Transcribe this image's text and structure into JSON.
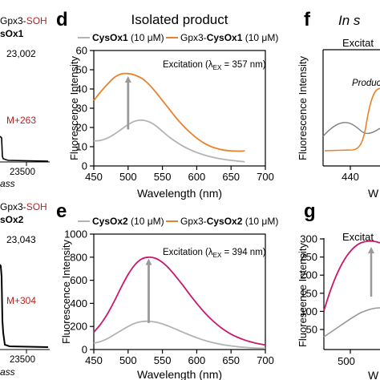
{
  "left_fragment": {
    "top": {
      "legend_line1": "Gpx3-",
      "legend_line1_red": "SOH",
      "legend_line2": "sOx1",
      "peak_label": "23,002",
      "mass_label": "M+263",
      "tick_label": "23500",
      "axis_label": "ass"
    },
    "bottom": {
      "legend_line1": "Gpx3-",
      "legend_line1_red": "SOH",
      "legend_line2": "sOx2",
      "peak_label": "23,043",
      "mass_label": "M+304",
      "tick_label": "23500",
      "axis_label": "ass"
    }
  },
  "panels": {
    "d_letter": "d",
    "e_letter": "e",
    "f_letter": "f",
    "g_letter": "g",
    "d_title": "Isolated product",
    "f_title": "In s",
    "f_subtitle": "Excitat",
    "f_annotation": "Produc",
    "g_subtitle": "Excitat",
    "f_xtick": "440",
    "f_xlabel": "W",
    "g_xtick": "500",
    "g_xlabel": "W",
    "g_yticks": [
      "300",
      "250",
      "200",
      "150",
      "100",
      "50"
    ],
    "f_ylabel": "Fluorescence Intensity",
    "g_ylabel": "Fluorescence Intensity"
  },
  "colors": {
    "gray": "#b3b3b3",
    "orange": "#e8822a",
    "magenta": "#c8196b",
    "red_text": "#b32424",
    "arrow": "#9a9a9a"
  },
  "chart_data": [
    {
      "id": "d",
      "type": "line",
      "xlabel": "Wavelength (nm)",
      "ylabel": "Fluorescence Intensity",
      "xlim": [
        450,
        700
      ],
      "ylim": [
        0,
        60
      ],
      "xticks": [
        450,
        500,
        550,
        600,
        650,
        700
      ],
      "yticks": [
        0,
        10,
        20,
        30,
        40,
        50,
        60
      ],
      "annotation": "Excitation (λ",
      "annotation_sub": "EX",
      "annotation_end": " = 357 nm)",
      "legend": [
        {
          "bold": "CysOx1",
          "rest": " (10 μM)",
          "color": "gray"
        },
        {
          "prefix": "Gpx3-",
          "bold": "CysOx1",
          "rest": " (10 μM)",
          "color": "orange"
        }
      ],
      "series": [
        {
          "color": "gray",
          "x": [
            450,
            460,
            470,
            480,
            490,
            500,
            510,
            520,
            530,
            540,
            550,
            560,
            570,
            580,
            590,
            600,
            610,
            620,
            630,
            640,
            650,
            660,
            670
          ],
          "y": [
            13,
            13.3,
            14.5,
            16.5,
            19,
            21.5,
            23.3,
            23.8,
            23,
            21,
            18,
            15,
            12.5,
            10.3,
            8.5,
            7,
            5.8,
            4.8,
            4,
            3.4,
            2.9,
            2.5,
            2.2
          ]
        },
        {
          "color": "orange",
          "x": [
            450,
            460,
            470,
            480,
            490,
            500,
            510,
            520,
            530,
            540,
            550,
            560,
            570,
            580,
            590,
            600,
            610,
            620,
            630,
            640,
            650,
            660,
            670
          ],
          "y": [
            34,
            38.5,
            42.5,
            46,
            47.8,
            48,
            47.2,
            45.5,
            42.5,
            38.5,
            34,
            29.5,
            25,
            21,
            17.5,
            14.5,
            12,
            10.2,
            9,
            8.2,
            7.8,
            7.7,
            7.8
          ]
        }
      ],
      "arrow": {
        "x": 500,
        "y_from": 19,
        "y_to": 45
      }
    },
    {
      "id": "e",
      "type": "line",
      "xlabel": "Wavelength (nm)",
      "ylabel": "Fluorescence Intensity",
      "xlim": [
        450,
        700
      ],
      "ylim": [
        0,
        1000
      ],
      "xticks": [
        450,
        500,
        550,
        600,
        650,
        700
      ],
      "yticks": [
        0,
        200,
        400,
        600,
        800,
        1000
      ],
      "annotation": "Excitation (λ",
      "annotation_sub": "EX",
      "annotation_end": " = 394 nm)",
      "legend": [
        {
          "bold": "CysOx2",
          "rest": " (10 μM)",
          "color": "gray"
        },
        {
          "prefix": "Gpx3-",
          "bold": "CysOx2",
          "rest": " (10 μM)",
          "color": "orange"
        }
      ],
      "series": [
        {
          "color": "gray",
          "x": [
            450,
            460,
            470,
            480,
            490,
            500,
            510,
            520,
            530,
            540,
            550,
            560,
            570,
            580,
            590,
            600,
            610,
            620,
            630,
            640,
            650,
            660,
            670,
            680,
            690,
            700
          ],
          "y": [
            55,
            70,
            95,
            130,
            165,
            200,
            228,
            242,
            245,
            238,
            222,
            200,
            175,
            150,
            125,
            102,
            82,
            65,
            51,
            40,
            31,
            24,
            19,
            15,
            12,
            10
          ]
        },
        {
          "color": "magenta",
          "x": [
            450,
            460,
            470,
            480,
            490,
            500,
            510,
            520,
            530,
            540,
            550,
            560,
            570,
            580,
            590,
            600,
            610,
            620,
            630,
            640,
            650,
            660,
            670,
            680,
            690,
            700
          ],
          "y": [
            150,
            220,
            310,
            420,
            540,
            650,
            735,
            785,
            800,
            790,
            755,
            700,
            630,
            555,
            475,
            400,
            330,
            268,
            215,
            170,
            133,
            105,
            82,
            64,
            50,
            40
          ]
        }
      ],
      "arrow": {
        "x": 530,
        "y_from": 230,
        "y_to": 760
      }
    }
  ]
}
